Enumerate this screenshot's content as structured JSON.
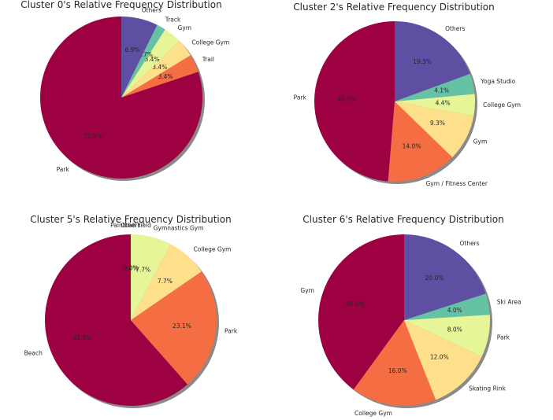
{
  "figure": {
    "background": "#ffffff",
    "shadow_color": "#8a8a8a",
    "palette": {
      "dark_red": "#9e0142",
      "orange": "#f46d43",
      "light_orange": "#fee08b",
      "yellow_green": "#e6f598",
      "teal": "#66c2a5",
      "purple": "#5e4fa2"
    }
  },
  "chart_data": [
    {
      "type": "pie",
      "title": "Cluster 0's Relative Frequency Distribution",
      "shadow": true,
      "start": "top",
      "direction": "counterclockwise",
      "slices": [
        {
          "label": "Park",
          "value": 75.9,
          "pct_text": "75.9%",
          "color": "#9e0142"
        },
        {
          "label": "Trail",
          "value": 3.4,
          "pct_text": "3.4%",
          "color": "#f46d43"
        },
        {
          "label": "College Gym",
          "value": 3.4,
          "pct_text": "3.4%",
          "color": "#fee08b"
        },
        {
          "label": "Gym",
          "value": 3.4,
          "pct_text": "3.4%",
          "color": "#e6f598"
        },
        {
          "label": "Track",
          "value": 1.7,
          "pct_text": "1.7%",
          "color": "#66c2a5"
        },
        {
          "label": "Others",
          "value": 6.9,
          "pct_text": "6.9%",
          "color": "#5e4fa2"
        }
      ]
    },
    {
      "type": "pie",
      "title": "Cluster 2's Relative Frequency Distribution",
      "shadow": true,
      "start": "top",
      "direction": "counterclockwise",
      "slices": [
        {
          "label": "Park",
          "value": 48.5,
          "pct_text": "48.5%",
          "color": "#9e0142"
        },
        {
          "label": "Gym / Fitness Center",
          "value": 14.0,
          "pct_text": "14.0%",
          "color": "#f46d43"
        },
        {
          "label": "Gym",
          "value": 9.3,
          "pct_text": "9.3%",
          "color": "#fee08b"
        },
        {
          "label": "College Gym",
          "value": 4.4,
          "pct_text": "4.4%",
          "color": "#e6f598"
        },
        {
          "label": "Yoga Studio",
          "value": 4.1,
          "pct_text": "4.1%",
          "color": "#66c2a5"
        },
        {
          "label": "Others",
          "value": 19.3,
          "pct_text": "19.3%",
          "color": "#5e4fa2"
        }
      ]
    },
    {
      "type": "pie",
      "title": "Cluster 5's Relative Frequency Distribution",
      "shadow": true,
      "start": "top",
      "direction": "counterclockwise",
      "slices": [
        {
          "label": "Beach",
          "value": 61.5,
          "pct_text": "61.5%",
          "color": "#9e0142"
        },
        {
          "label": "Park",
          "value": 23.1,
          "pct_text": "23.1%",
          "color": "#f46d43"
        },
        {
          "label": "College Gym",
          "value": 7.7,
          "pct_text": "7.7%",
          "color": "#fee08b"
        },
        {
          "label": "Gymnastics Gym",
          "value": 7.7,
          "pct_text": "7.7%",
          "color": "#e6f598"
        },
        {
          "label": "Paintball Field",
          "value": 0.0,
          "pct_text": "0.0%",
          "color": "#66c2a5"
        },
        {
          "label": "Others",
          "value": 0.0,
          "pct_text": "0.0%",
          "color": "#5e4fa2"
        }
      ]
    },
    {
      "type": "pie",
      "title": "Cluster 6's Relative Frequency Distribution",
      "shadow": true,
      "start": "top",
      "direction": "counterclockwise",
      "slices": [
        {
          "label": "Gym",
          "value": 40.0,
          "pct_text": "40.0%",
          "color": "#9e0142"
        },
        {
          "label": "College Gym",
          "value": 16.0,
          "pct_text": "16.0%",
          "color": "#f46d43"
        },
        {
          "label": "Skating Rink",
          "value": 12.0,
          "pct_text": "12.0%",
          "color": "#fee08b"
        },
        {
          "label": "Park",
          "value": 8.0,
          "pct_text": "8.0%",
          "color": "#e6f598"
        },
        {
          "label": "Ski Area",
          "value": 4.0,
          "pct_text": "4.0%",
          "color": "#66c2a5"
        },
        {
          "label": "Others",
          "value": 20.0,
          "pct_text": "20.0%",
          "color": "#5e4fa2"
        }
      ]
    }
  ]
}
